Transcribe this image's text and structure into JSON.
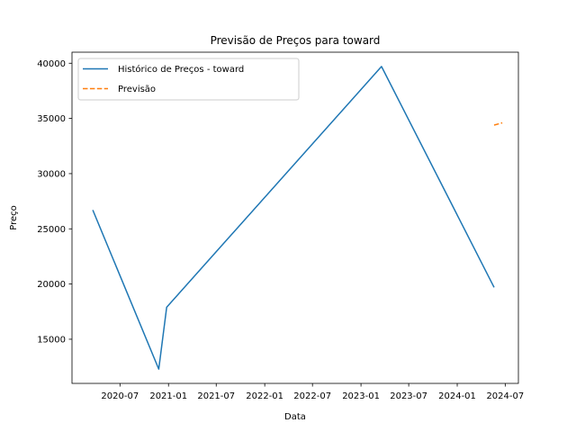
{
  "chart_data": {
    "type": "line",
    "title": "Previsão de Preços para toward",
    "xlabel": "Data",
    "ylabel": "Preço",
    "xlim": [
      "2020-01-01",
      "2024-08-20"
    ],
    "ylim": [
      11000,
      41000
    ],
    "x_ticks": [
      "2020-07",
      "2021-01",
      "2021-07",
      "2022-01",
      "2022-07",
      "2023-01",
      "2023-07",
      "2024-01",
      "2024-07"
    ],
    "y_ticks": [
      15000,
      20000,
      25000,
      30000,
      35000,
      40000
    ],
    "grid": false,
    "legend_position": "top-left",
    "series": [
      {
        "name": "Histórico de Preços - toward",
        "color": "#1f77b4",
        "style": "solid",
        "points": [
          {
            "x": "2020-03-20",
            "y": 26700
          },
          {
            "x": "2020-11-25",
            "y": 12300
          },
          {
            "x": "2020-12-25",
            "y": 17900
          },
          {
            "x": "2023-03-20",
            "y": 39700
          },
          {
            "x": "2024-05-20",
            "y": 19700
          }
        ]
      },
      {
        "name": "Previsão",
        "color": "#ff7f0e",
        "style": "dashed",
        "points": [
          {
            "x": "2024-05-20",
            "y": 34400
          },
          {
            "x": "2024-06-20",
            "y": 34600
          }
        ]
      }
    ]
  }
}
